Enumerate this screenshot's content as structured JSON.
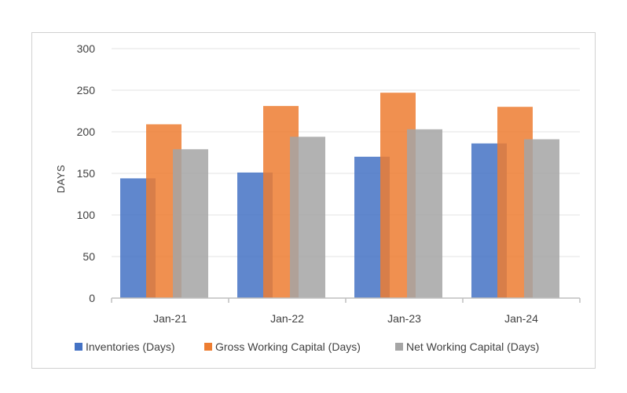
{
  "chart_data": {
    "type": "bar",
    "ylabel": "DAYS",
    "xlabel": "",
    "ylim": [
      0,
      300
    ],
    "yticks": [
      0,
      50,
      100,
      150,
      200,
      250,
      300
    ],
    "grid": true,
    "legend_position": "bottom",
    "categories": [
      "Jan-21",
      "Jan-22",
      "Jan-23",
      "Jan-24"
    ],
    "series": [
      {
        "name": "Inventories (Days)",
        "color": "#4472c4",
        "values": [
          144,
          151,
          170,
          186
        ]
      },
      {
        "name": "Gross Working Capital (Days)",
        "color": "#ed7d31",
        "values": [
          209,
          231,
          247,
          230
        ]
      },
      {
        "name": "Net Working Capital (Days)",
        "color": "#a5a5a5",
        "values": [
          179,
          194,
          203,
          191
        ]
      }
    ]
  }
}
